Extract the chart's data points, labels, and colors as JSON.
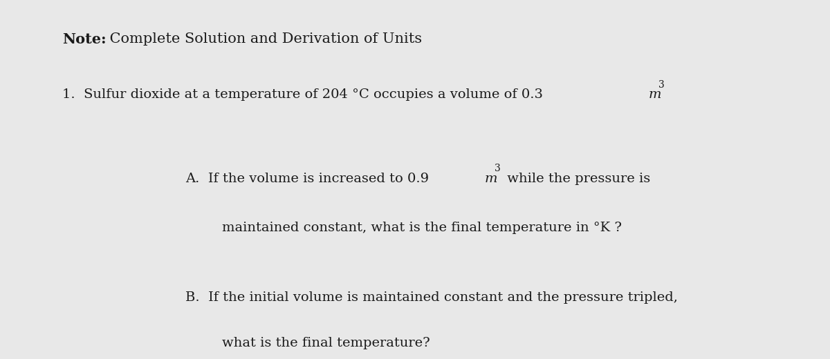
{
  "background_color": "#e8e8e8",
  "title_bold": "Note:",
  "title_normal": " Complete Solution and Derivation of Units",
  "item1": "1.  Sulfur dioxide at a temperature of 204 °C occupies a volume of 0.3 ",
  "item1_italic": "m",
  "item1_super": "3",
  "partA_line1_pre": "A.  If the volume is increased to 0.9 ",
  "partA_line1_italic": "m",
  "partA_line1_super": "3",
  "partA_line1_post": " while the pressure is",
  "partA_line2": "maintained constant, what is the final temperature in °K ?",
  "partB_line1": "B.  If the initial volume is maintained constant and the pressure tripled,",
  "partB_line2": "what is the final temperature?",
  "font_size_title": 15,
  "font_size_body": 14,
  "text_color": "#1a1a1a"
}
